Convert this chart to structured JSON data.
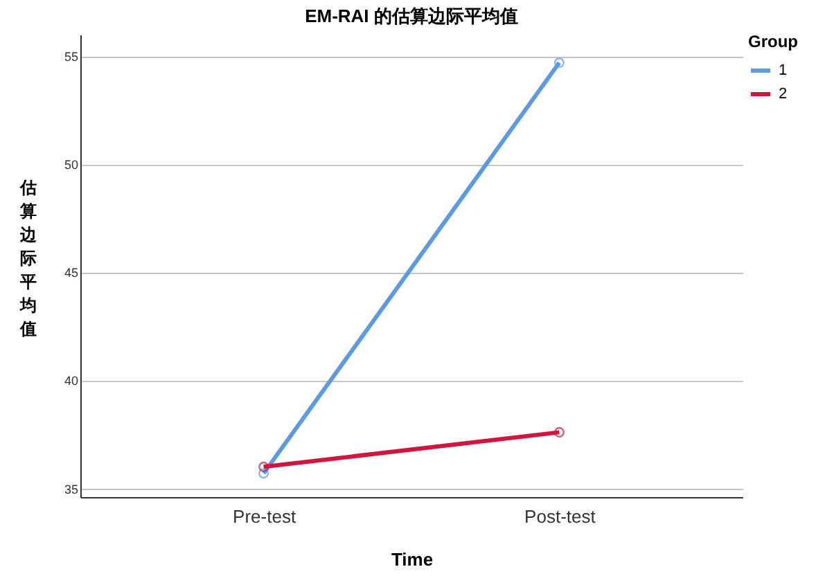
{
  "chart_data": {
    "type": "line",
    "title": "EM-RAI 的估算边际平均值",
    "xlabel": "Time",
    "ylabel": "估算边际平均值",
    "legend_title": "Group",
    "categories": [
      "Pre-test",
      "Post-test"
    ],
    "series": [
      {
        "name": "1",
        "color": "#5b9be6",
        "values": [
          35.7,
          54.7
        ]
      },
      {
        "name": "2",
        "color": "#d5133f",
        "values": [
          36.0,
          37.6
        ]
      }
    ],
    "ylim": [
      34.6,
      56
    ],
    "yticks": [
      35,
      40,
      45,
      50,
      55
    ],
    "grid": "y",
    "legend": "top right",
    "marker": "circle",
    "line_style": "solid"
  }
}
